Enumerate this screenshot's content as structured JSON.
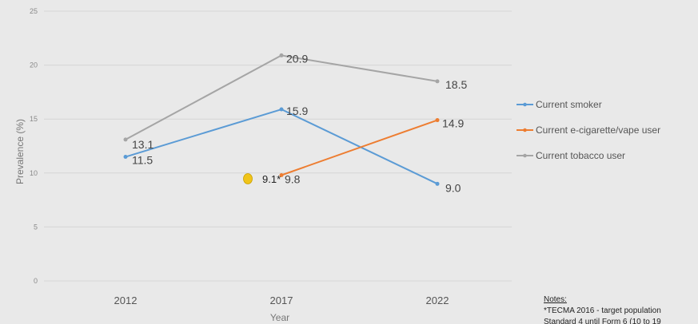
{
  "chart_data": {
    "type": "line",
    "title": "",
    "xlabel": "Year",
    "ylabel": "Prevalence (%)",
    "ylim": [
      0,
      25
    ],
    "y_ticks": [
      "0",
      "5",
      "10",
      "15",
      "20",
      "25"
    ],
    "categories": [
      "2012",
      "2017",
      "2022"
    ],
    "grid": true,
    "legend_position": "right",
    "series": [
      {
        "name": "Current smoker",
        "color": "#5b9bd5",
        "values": [
          11.5,
          15.9,
          9.0
        ],
        "labels": [
          "11.5",
          "15.9",
          "9.0"
        ]
      },
      {
        "name": "Current e-cigarette/vape user",
        "color": "#ed7d31",
        "values": [
          null,
          9.8,
          14.9
        ],
        "labels": [
          "",
          "9.8",
          "14.9"
        ]
      },
      {
        "name": "Current tobacco user",
        "color": "#a5a5a5",
        "values": [
          13.1,
          20.9,
          18.5
        ],
        "labels": [
          "13.1",
          "20.9",
          "18.5"
        ]
      }
    ],
    "annotation": {
      "label": "9.1*",
      "value": 9.1,
      "year_position": 2016,
      "color": "#f0c419"
    },
    "notes": {
      "title": "Notes:",
      "lines": [
        "*TECMA 2016 - target population",
        "Standard 4 until Form 6 (10 to 19"
      ]
    }
  }
}
